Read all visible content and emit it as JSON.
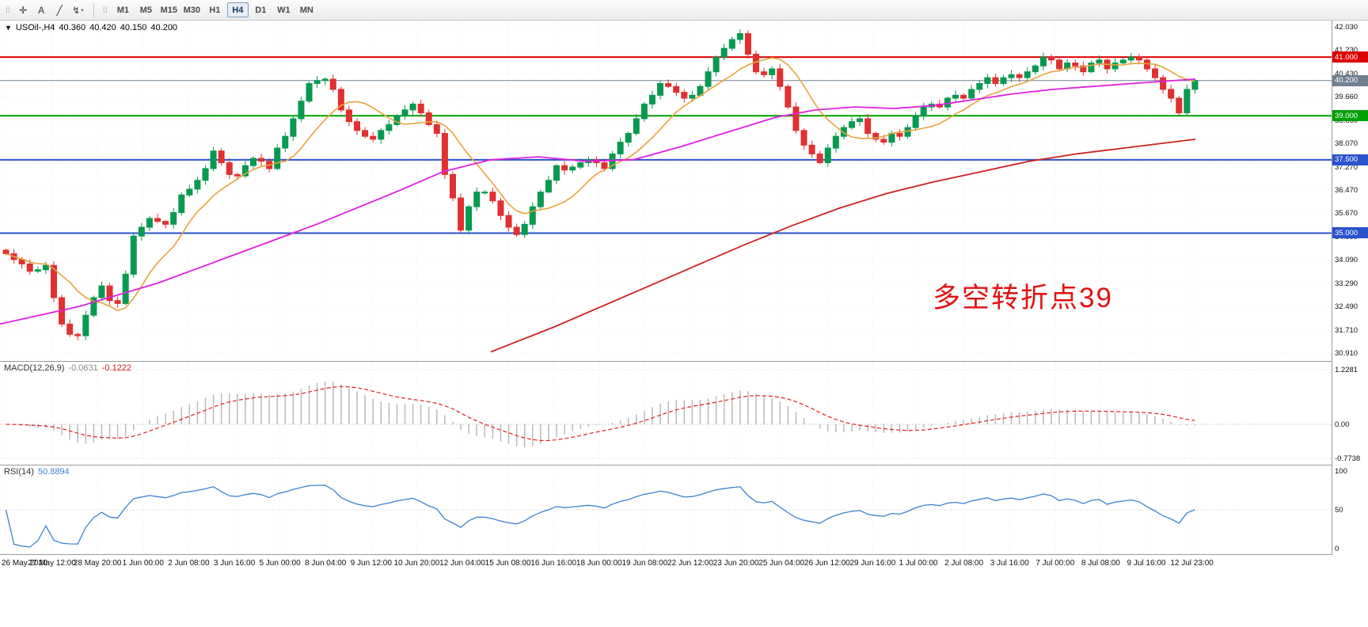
{
  "toolbar": {
    "tools": [
      {
        "name": "crosshair-tool-button",
        "glyph": "✛",
        "dropdown": false
      },
      {
        "name": "text-tool-button",
        "glyph": "A",
        "dropdown": false
      },
      {
        "name": "trendline-tool-button",
        "glyph": "╱",
        "dropdown": false
      },
      {
        "name": "indicators-dropdown-button",
        "glyph": "↯",
        "dropdown": true
      }
    ],
    "timeframes": [
      "M1",
      "M5",
      "M15",
      "M30",
      "H1",
      "H4",
      "D1",
      "W1",
      "MN"
    ],
    "selected": "H4"
  },
  "header": {
    "symbol_period": "USOil-,H4",
    "open": "40.360",
    "high": "40.420",
    "low": "40.150",
    "close": "40.200"
  },
  "annotation": {
    "text": "多空转折点39",
    "color": "#e01212"
  },
  "macd": {
    "name": "MACD(12,26,9)",
    "value1": "-0.0631",
    "value2": "-0.1222",
    "axis_labels": [
      "1.2281",
      "0.00",
      "-0.7738"
    ]
  },
  "rsi": {
    "name": "RSI(14)",
    "value": "50.8894",
    "axis_labels": [
      "100",
      "50",
      "0"
    ]
  },
  "chart_data": {
    "type": "candlestick",
    "symbol": "USOil-",
    "timeframe": "H4",
    "ylim": [
      30.91,
      42.03
    ],
    "up_color": "#089950",
    "down_color": "#e03030",
    "ma_fast_color": "#e8a33d",
    "ma_mid_color": "#e020e0",
    "ma_slow_color": "#d02020",
    "price_axis_ticks": [
      "42.030",
      "41.230",
      "40.430",
      "39.660",
      "38.860",
      "38.070",
      "37.270",
      "36.470",
      "35.670",
      "34.890",
      "34.090",
      "33.290",
      "32.490",
      "31.710",
      "30.910"
    ],
    "x_axis_labels": [
      "26 May 2020",
      "27 May 12:00",
      "28 May 20:00",
      "1 Jun 00:00",
      "2 Jun 08:00",
      "3 Jun 16:00",
      "5 Jun 00:00",
      "8 Jun 04:00",
      "9 Jun 12:00",
      "10 Jun 20:00",
      "12 Jun 04:00",
      "15 Jun 08:00",
      "16 Jun 16:00",
      "18 Jun 00:00",
      "19 Jun 08:00",
      "22 Jun 12:00",
      "23 Jun 20:00",
      "25 Jun 04:00",
      "26 Jun 12:00",
      "29 Jun 16:00",
      "1 Jul 00:00",
      "2 Jul 08:00",
      "3 Jul 16:00",
      "7 Jul 00:00",
      "8 Jul 08:00",
      "9 Jul 16:00",
      "12 Jul 23:00"
    ],
    "closes": [
      34.3,
      34.1,
      33.95,
      33.7,
      33.75,
      33.9,
      32.8,
      31.9,
      31.55,
      31.5,
      32.2,
      32.8,
      33.2,
      32.7,
      32.6,
      33.6,
      34.9,
      35.2,
      35.5,
      35.4,
      35.3,
      35.7,
      36.3,
      36.5,
      36.8,
      37.2,
      37.8,
      37.4,
      37.0,
      36.95,
      37.3,
      37.55,
      37.45,
      37.2,
      37.9,
      38.3,
      38.9,
      39.5,
      40.1,
      40.2,
      40.25,
      39.9,
      39.2,
      38.8,
      38.5,
      38.3,
      38.2,
      38.5,
      38.7,
      39.0,
      39.2,
      39.4,
      39.1,
      38.7,
      38.4,
      37.0,
      36.2,
      35.1,
      35.9,
      36.4,
      36.4,
      36.1,
      35.6,
      35.2,
      34.95,
      35.3,
      35.9,
      36.4,
      36.8,
      37.3,
      37.15,
      37.25,
      37.4,
      37.5,
      37.4,
      37.2,
      37.7,
      38.1,
      38.4,
      38.9,
      39.4,
      39.7,
      40.1,
      40.0,
      39.8,
      39.6,
      39.7,
      40.0,
      40.5,
      41.0,
      41.3,
      41.6,
      41.8,
      41.1,
      40.5,
      40.4,
      40.6,
      40.0,
      39.3,
      38.5,
      38.0,
      37.7,
      37.4,
      37.9,
      38.3,
      38.6,
      38.8,
      38.9,
      38.4,
      38.2,
      38.1,
      38.4,
      38.3,
      38.6,
      39.0,
      39.3,
      39.4,
      39.3,
      39.6,
      39.7,
      39.6,
      39.9,
      40.1,
      40.3,
      40.1,
      40.3,
      40.4,
      40.3,
      40.5,
      40.7,
      41.0,
      40.9,
      40.6,
      40.8,
      40.7,
      40.5,
      40.8,
      40.9,
      40.6,
      40.8,
      40.9,
      41.0,
      40.9,
      40.6,
      40.3,
      39.9,
      39.6,
      39.1,
      39.9,
      40.2
    ],
    "last_ohlc": {
      "open": 40.36,
      "high": 40.42,
      "low": 40.15,
      "close": 40.2
    },
    "horizontal_lines": [
      {
        "price": 41.0,
        "label": "41.000",
        "color": "#dd0000"
      },
      {
        "price": 39.0,
        "label": "39.000",
        "color": "#00a000"
      },
      {
        "price": 37.5,
        "label": "37.500",
        "color": "#2952cc"
      },
      {
        "price": 35.0,
        "label": "35.000",
        "color": "#2952cc"
      }
    ],
    "current_price": {
      "value": 40.2,
      "label": "40.200",
      "color": "#708090"
    },
    "ma_magenta": [
      [
        0,
        31.9
      ],
      [
        100,
        32.5
      ],
      [
        200,
        33.3
      ],
      [
        300,
        34.3
      ],
      [
        400,
        35.3
      ],
      [
        500,
        36.4
      ],
      [
        560,
        37.1
      ],
      [
        620,
        37.5
      ],
      [
        680,
        37.6
      ],
      [
        740,
        37.45
      ],
      [
        800,
        37.5
      ],
      [
        860,
        37.95
      ],
      [
        920,
        38.45
      ],
      [
        980,
        38.95
      ],
      [
        1030,
        39.2
      ],
      [
        1080,
        39.3
      ],
      [
        1130,
        39.25
      ],
      [
        1180,
        39.35
      ],
      [
        1230,
        39.55
      ],
      [
        1280,
        39.75
      ],
      [
        1330,
        39.9
      ],
      [
        1380,
        40.0
      ],
      [
        1430,
        40.1
      ],
      [
        1510,
        40.25
      ]
    ],
    "ma_red": [
      [
        620,
        30.95
      ],
      [
        700,
        31.8
      ],
      [
        760,
        32.5
      ],
      [
        820,
        33.2
      ],
      [
        880,
        33.9
      ],
      [
        940,
        34.6
      ],
      [
        1000,
        35.25
      ],
      [
        1060,
        35.85
      ],
      [
        1120,
        36.35
      ],
      [
        1180,
        36.75
      ],
      [
        1240,
        37.1
      ],
      [
        1300,
        37.45
      ],
      [
        1360,
        37.7
      ],
      [
        1420,
        37.9
      ],
      [
        1510,
        38.2
      ]
    ],
    "macd_panel": {
      "range": [
        -0.7738,
        1.2281
      ]
    },
    "rsi_panel": {
      "range": [
        0,
        100
      ]
    }
  }
}
